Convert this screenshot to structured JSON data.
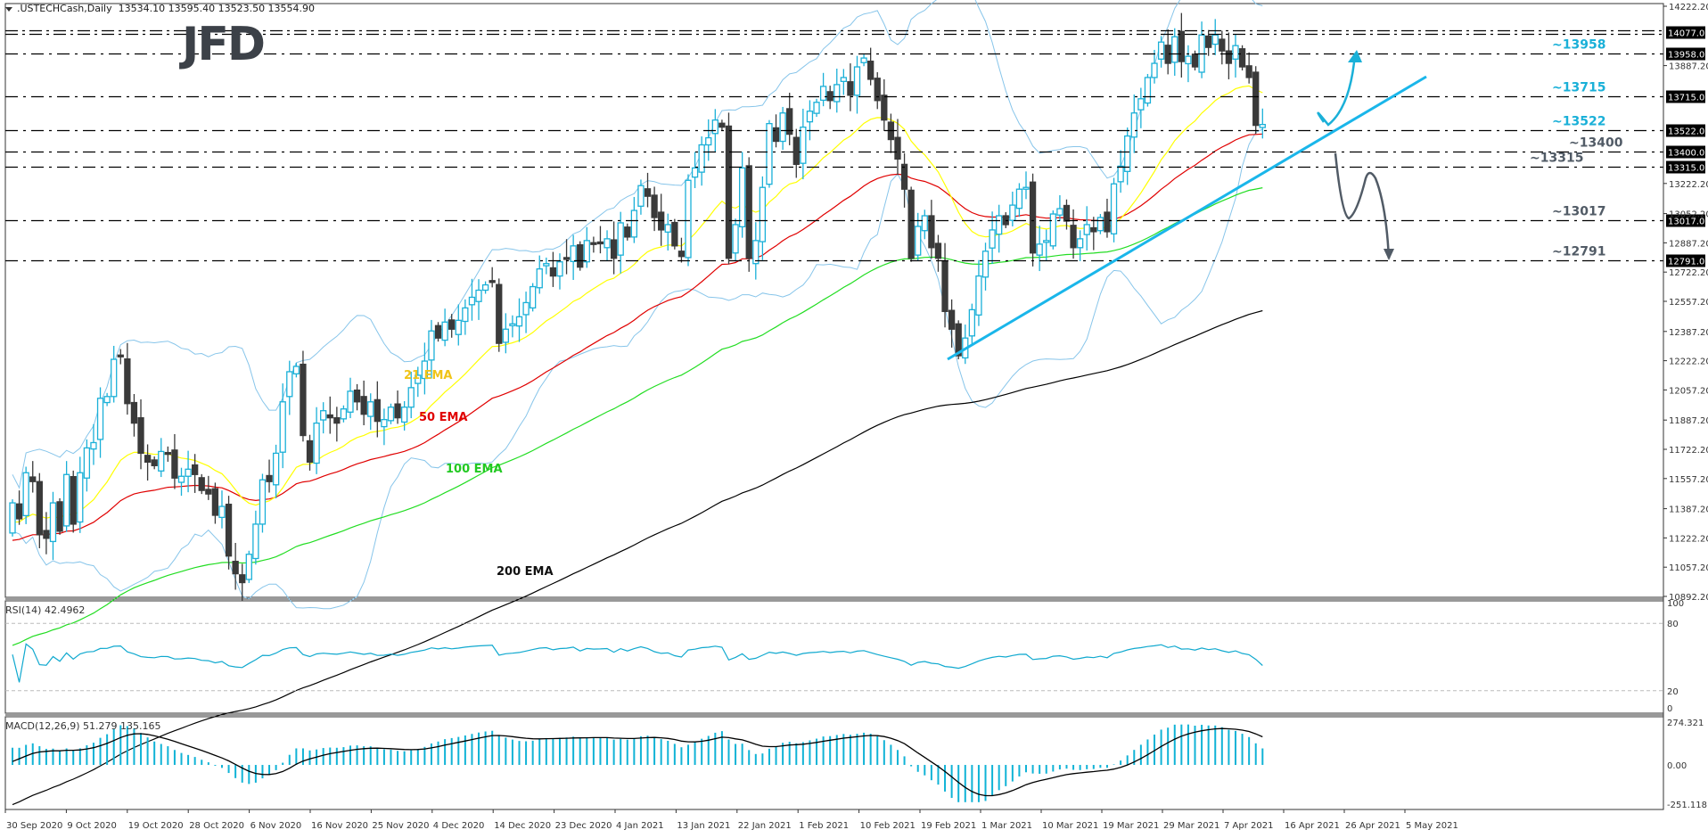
{
  "header": {
    "symbol_label": ".USTECHCash,Daily",
    "ohlc": "13534.10 13595.40 13523.50 13554.90"
  },
  "logo": {
    "text": "JFD"
  },
  "colors": {
    "bull": "#1ab0d8",
    "bear": "#3a3a3a",
    "ema21": "#ffff00",
    "ema50": "#e00000",
    "ema100": "#22dd22",
    "ema200": "#000000",
    "bollinger": "#87c5ea",
    "trendline": "#1ab6ea",
    "bull_annotation": "#1ab0d8",
    "bear_annotation": "#515b66",
    "level_line": "#000000",
    "rsi": "#10a9cf",
    "macd_hist": "#10b3d6",
    "macd_signal": "#000000"
  },
  "price_axis": {
    "ticks": [
      "14222.20",
      "13887.20",
      "13222.20",
      "13052.20",
      "12887.20",
      "12722.20",
      "12557.20",
      "12387.20",
      "12222.20",
      "12057.20",
      "11887.20",
      "11722.20",
      "11557.20",
      "11387.20",
      "11222.20",
      "11057.20",
      "10892.20"
    ],
    "current_price": "13554.90"
  },
  "levels": [
    {
      "price": 14077,
      "label": "",
      "axis_label": "14077.00",
      "style": "double"
    },
    {
      "price": 13958,
      "label": "~13958",
      "axis_label": "13958.00",
      "tone": "bull"
    },
    {
      "price": 13715,
      "label": "~13715",
      "axis_label": "13715.00",
      "tone": "bull"
    },
    {
      "price": 13522,
      "label": "~13522",
      "axis_label": "13522.00",
      "tone": "bull"
    },
    {
      "price": 13400,
      "label": "~13400",
      "axis_label": "13400.00",
      "tone": "bear"
    },
    {
      "price": 13315,
      "label": "~13315",
      "axis_label": "13315.00",
      "tone": "bear"
    },
    {
      "price": 13017,
      "label": "~13017",
      "axis_label": "13017.00",
      "tone": "bear"
    },
    {
      "price": 12791,
      "label": "~12791",
      "axis_label": "12791.00",
      "tone": "bear"
    }
  ],
  "ema_labels": {
    "ema21": "21 EMA",
    "ema50": "50 EMA",
    "ema100": "100 EMA",
    "ema200": "200 EMA"
  },
  "rsi": {
    "title": "RSI(14) 42.4962",
    "axis": [
      "100",
      "80",
      "20",
      "0"
    ]
  },
  "macd": {
    "title": "MACD(12,26,9) 51.279 135.165",
    "axis": [
      "274.321",
      "0.00",
      "-251.118"
    ]
  },
  "time_axis": [
    "30 Sep 2020",
    "9 Oct 2020",
    "19 Oct 2020",
    "28 Oct 2020",
    "6 Nov 2020",
    "16 Nov 2020",
    "25 Nov 2020",
    "4 Dec 2020",
    "14 Dec 2020",
    "23 Dec 2020",
    "4 Jan 2021",
    "13 Jan 2021",
    "22 Jan 2021",
    "1 Feb 2021",
    "10 Feb 2021",
    "19 Feb 2021",
    "1 Mar 2021",
    "10 Mar 2021",
    "19 Mar 2021",
    "29 Mar 2021",
    "7 Apr 2021",
    "16 Apr 2021",
    "26 Apr 2021",
    "5 May 2021"
  ],
  "chart_data": {
    "type": "candlestick",
    "title": ".USTECHCash, Daily",
    "ylim": [
      10892.2,
      14222.2
    ],
    "closes": [
      11420,
      11330,
      11590,
      11540,
      11240,
      11220,
      11420,
      11260,
      11580,
      11300,
      11590,
      11730,
      11760,
      12010,
      12020,
      12230,
      12250,
      11980,
      11870,
      11700,
      11650,
      11630,
      11710,
      11700,
      11560,
      11570,
      11610,
      11580,
      11490,
      11470,
      11350,
      11400,
      11120,
      11020,
      10970,
      11130,
      11300,
      11550,
      11540,
      11700,
      11990,
      12160,
      12190,
      11800,
      11650,
      11870,
      11940,
      11900,
      11870,
      11950,
      12050,
      11990,
      11920,
      11990,
      11880,
      11890,
      11960,
      11900,
      11960,
      12070,
      12140,
      12220,
      12390,
      12350,
      12440,
      12400,
      12450,
      12520,
      12580,
      12620,
      12650,
      12670,
      12320,
      12400,
      12430,
      12470,
      12550,
      12640,
      12740,
      12770,
      12700,
      12780,
      12800,
      12870,
      12750,
      12900,
      12880,
      12890,
      12910,
      12800,
      13000,
      12920,
      13070,
      13210,
      13150,
      13030,
      12960,
      12990,
      12870,
      12810,
      13240,
      13310,
      13440,
      13480,
      13580,
      13540,
      12800,
      12990,
      13310,
      12800,
      12900,
      13200,
      13560,
      13460,
      13620,
      13500,
      13330,
      13540,
      13630,
      13680,
      13770,
      13690,
      13780,
      13820,
      13720,
      13880,
      13930,
      13810,
      13690,
      13580,
      13470,
      13360,
      13190,
      12800,
      12980,
      13040,
      12860,
      12800,
      12500,
      12400,
      12250,
      12350,
      12510,
      12700,
      12840,
      12960,
      13040,
      12990,
      13100,
      13190,
      13200,
      12830,
      12880,
      12900,
      13050,
      13080,
      13010,
      12860,
      12910,
      12990,
      12950,
      13030,
      12950,
      13220,
      13320,
      13490,
      13620,
      13700,
      13820,
      13900,
      14020,
      13900,
      14050,
      13910,
      13940,
      13880,
      14060,
      13990,
      14060,
      13970,
      13900,
      14000,
      13880,
      13820,
      13550,
      13555
    ],
    "series": [
      {
        "name": "21 EMA"
      },
      {
        "name": "50 EMA"
      },
      {
        "name": "100 EMA"
      },
      {
        "name": "200 EMA"
      },
      {
        "name": "Bollinger Bands"
      }
    ],
    "annotations": [
      "~13958",
      "~13715",
      "~13522",
      "~13400",
      "~13315",
      "~13017",
      "~12791",
      "uptrend line from ~12222 (early Mar 2021)",
      "bullish arrow bounce toward ~13958",
      "bearish scenario arrow toward ~12791"
    ],
    "indicators": {
      "rsi": {
        "period": 14,
        "last": 42.4962,
        "levels": [
          80,
          20
        ],
        "ylim": [
          0,
          100
        ]
      },
      "macd": {
        "params": [
          12,
          26,
          9
        ],
        "main": 51.279,
        "signal": 135.165,
        "ylim": [
          -251.118,
          274.321
        ]
      }
    },
    "xlabel": "",
    "ylabel": ""
  }
}
